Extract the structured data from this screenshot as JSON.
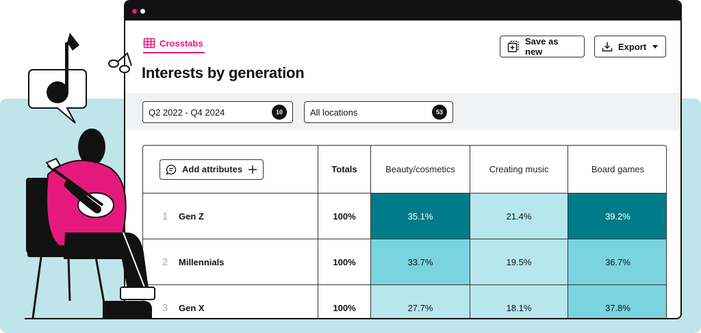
{
  "tab": {
    "label": "Crosstabs",
    "icon": "table-icon"
  },
  "page": {
    "title": "Interests by generation"
  },
  "toolbar": {
    "save_label": "Save as new",
    "export_label": "Export"
  },
  "filters": [
    {
      "label": "Q2 2022 - Q4 2024",
      "count": "10"
    },
    {
      "label": "All locations",
      "count": "53"
    }
  ],
  "table": {
    "add_attributes_label": "Add attributes",
    "columns": [
      "Totals",
      "Beauty/cosmetics",
      "Creating music",
      "Board games"
    ],
    "rows": [
      {
        "num": "1",
        "name": "Gen Z",
        "total": "100%",
        "values": [
          "35.1%",
          "21.4%",
          "39.2%"
        ]
      },
      {
        "num": "2",
        "name": "Millennials",
        "total": "100%",
        "values": [
          "33.7%",
          "19.5%",
          "36.7%"
        ]
      },
      {
        "num": "3",
        "name": "Gen X",
        "total": "100%",
        "values": [
          "27.7%",
          "18.1%",
          "37.8%"
        ]
      }
    ]
  },
  "colors": {
    "accent": "#e5197d",
    "heat_dark": "#007b8a",
    "heat_mid": "#79d4df",
    "heat_light": "#b7e7ec",
    "band": "#bfe5ea"
  }
}
